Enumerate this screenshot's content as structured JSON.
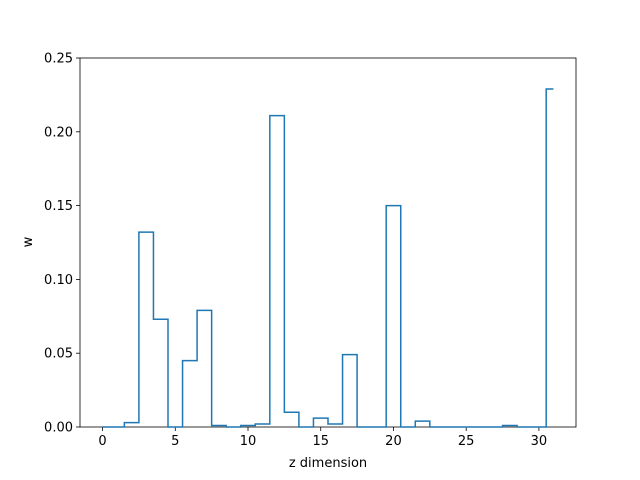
{
  "chart_data": {
    "type": "line",
    "step": "mid",
    "title": "",
    "xlabel": "z dimension",
    "ylabel": "w",
    "xlim": [
      -1.55,
      32.55
    ],
    "ylim": [
      0,
      0.25
    ],
    "xticks": [
      0,
      5,
      10,
      15,
      20,
      25,
      30
    ],
    "yticks": [
      0.0,
      0.05,
      0.1,
      0.15,
      0.2,
      0.25
    ],
    "ytick_labels": [
      "0.00",
      "0.05",
      "0.10",
      "0.15",
      "0.20",
      "0.25"
    ],
    "series": [
      {
        "color": "#1f77b4",
        "x": [
          0,
          1,
          2,
          3,
          4,
          5,
          6,
          7,
          8,
          9,
          10,
          11,
          12,
          13,
          14,
          15,
          16,
          17,
          18,
          19,
          20,
          21,
          22,
          23,
          24,
          25,
          26,
          27,
          28,
          29,
          30,
          31
        ],
        "y": [
          0.0,
          0.0,
          0.003,
          0.132,
          0.073,
          0.0,
          0.045,
          0.079,
          0.001,
          0.0,
          0.001,
          0.002,
          0.211,
          0.01,
          0.0,
          0.006,
          0.002,
          0.049,
          0.0,
          0.0,
          0.15,
          0.0,
          0.004,
          0.0,
          0.0,
          0.0,
          0.0,
          0.0,
          0.001,
          0.0,
          0.0,
          0.229
        ]
      }
    ],
    "grid": false,
    "legend": "none"
  }
}
